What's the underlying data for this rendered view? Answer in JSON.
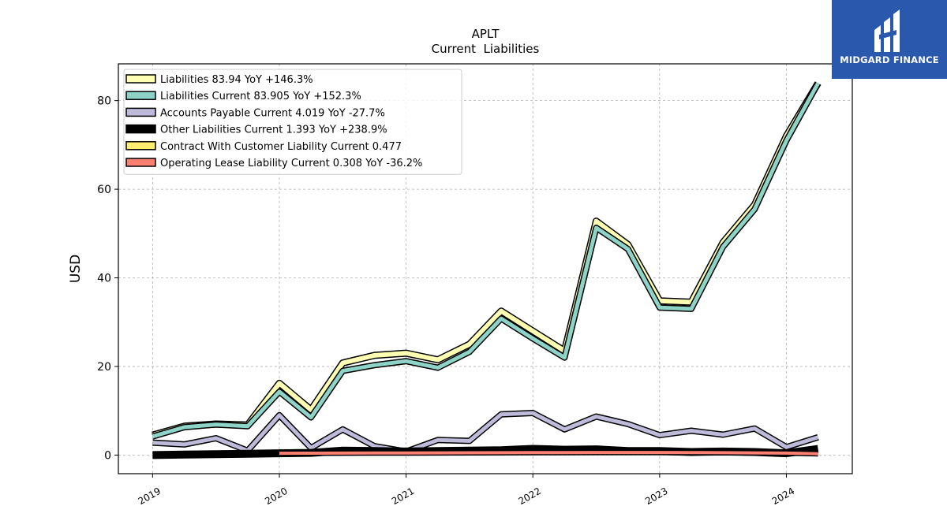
{
  "chart_data": {
    "type": "line",
    "title": "APLT",
    "subtitle": "Current  Liabilities",
    "xlabel": "",
    "ylabel": "USD",
    "xlim": [
      2018.73,
      2024.52
    ],
    "ylim": [
      -4.2,
      88.3
    ],
    "x_ticks": [
      2019,
      2020,
      2021,
      2022,
      2023,
      2024
    ],
    "x_tick_labels": [
      "2019",
      "2020",
      "2021",
      "2022",
      "2023",
      "2024"
    ],
    "y_ticks": [
      0,
      20,
      40,
      60,
      80
    ],
    "y_tick_labels": [
      "0",
      "20",
      "40",
      "60",
      "80"
    ],
    "grid": true,
    "legend_position": "top-left",
    "series": [
      {
        "name": "Liabilities",
        "legend": "Liabilities  83.94 YoY +146.3%",
        "color": "#ffffb3",
        "x": [
          2019.0,
          2019.25,
          2019.5,
          2019.75,
          2020.0,
          2020.25,
          2020.5,
          2020.75,
          2021.0,
          2021.25,
          2021.5,
          2021.75,
          2022.0,
          2022.25,
          2022.5,
          2022.75,
          2023.0,
          2023.25,
          2023.5,
          2023.75,
          2024.0,
          2024.25
        ],
        "values": [
          4.5,
          6.5,
          7.0,
          6.8,
          16.2,
          10.2,
          20.8,
          22.5,
          23.0,
          21.5,
          25.0,
          32.5,
          28.0,
          23.5,
          52.8,
          47.5,
          34.8,
          34.5,
          48.0,
          56.5,
          72.0,
          83.94
        ]
      },
      {
        "name": "Liabilities Current",
        "legend": "Liabilities Current  83.905 YoY +152.3%",
        "color": "#8dd3c7",
        "x": [
          2019.0,
          2019.25,
          2019.5,
          2019.75,
          2020.0,
          2020.25,
          2020.5,
          2020.75,
          2021.0,
          2021.25,
          2021.5,
          2021.75,
          2022.0,
          2022.25,
          2022.5,
          2022.75,
          2023.0,
          2023.25,
          2023.5,
          2023.75,
          2024.0,
          2024.25
        ],
        "values": [
          4.2,
          6.3,
          6.9,
          6.5,
          14.3,
          8.5,
          19.0,
          20.3,
          21.2,
          19.7,
          23.3,
          30.8,
          26.3,
          22.0,
          51.3,
          46.5,
          33.3,
          33.0,
          47.0,
          55.5,
          71.0,
          83.905
        ]
      },
      {
        "name": "Accounts Payable Current",
        "legend": "Accounts Payable Current  4.019 YoY -27.7%",
        "color": "#bebada",
        "x": [
          2019.0,
          2019.25,
          2019.5,
          2019.75,
          2020.0,
          2020.25,
          2020.5,
          2020.75,
          2021.0,
          2021.25,
          2021.5,
          2021.75,
          2022.0,
          2022.25,
          2022.5,
          2022.75,
          2023.0,
          2023.25,
          2023.5,
          2023.75,
          2024.0,
          2024.25
        ],
        "values": [
          2.8,
          2.4,
          3.8,
          1.0,
          9.0,
          1.6,
          5.8,
          2.0,
          0.8,
          3.4,
          3.2,
          9.2,
          9.5,
          5.8,
          8.7,
          7.0,
          4.5,
          5.5,
          4.6,
          6.0,
          1.8,
          4.019
        ]
      },
      {
        "name": "Other Liabilities Current",
        "legend": "Other Liabilities Current  1.393 YoY +238.9%",
        "color": "#000000",
        "x": [
          2019.0,
          2019.25,
          2019.5,
          2019.75,
          2020.0,
          2020.25,
          2020.5,
          2020.75,
          2021.0,
          2021.25,
          2021.5,
          2021.75,
          2022.0,
          2022.25,
          2022.5,
          2022.75,
          2023.0,
          2023.25,
          2023.5,
          2023.75,
          2024.0,
          2024.25
        ],
        "values": [
          0.0,
          0.1,
          0.2,
          0.3,
          0.4,
          0.5,
          1.0,
          0.9,
          0.8,
          0.9,
          1.0,
          1.1,
          1.4,
          1.2,
          1.3,
          0.9,
          0.9,
          0.7,
          0.8,
          0.7,
          0.4,
          1.393
        ]
      },
      {
        "name": "Contract With Customer Liability Current",
        "legend": "Contract With Customer Liability Current  0.477",
        "color": "#ffed6f",
        "x": [
          2023.0,
          2023.25,
          2023.5,
          2023.75,
          2024.0,
          2024.25
        ],
        "values": [
          0.6,
          0.55,
          0.6,
          0.55,
          0.5,
          0.477
        ]
      },
      {
        "name": "Operating Lease Liability Current",
        "legend": "Operating Lease Liability Current  0.308 YoY -36.2%",
        "color": "#fb8072",
        "x": [
          2020.0,
          2020.25,
          2020.5,
          2020.75,
          2021.0,
          2021.25,
          2021.5,
          2021.75,
          2022.0,
          2022.25,
          2022.5,
          2022.75,
          2023.0,
          2023.25,
          2023.5,
          2023.75,
          2024.0,
          2024.25
        ],
        "values": [
          0.4,
          0.42,
          0.44,
          0.46,
          0.48,
          0.5,
          0.52,
          0.54,
          0.56,
          0.57,
          0.58,
          0.58,
          0.58,
          0.56,
          0.54,
          0.5,
          0.45,
          0.308
        ]
      }
    ]
  },
  "logo": {
    "text": "MIDGARD FINANCE",
    "background": "#2a58ad",
    "text_color": "#ffffff"
  }
}
